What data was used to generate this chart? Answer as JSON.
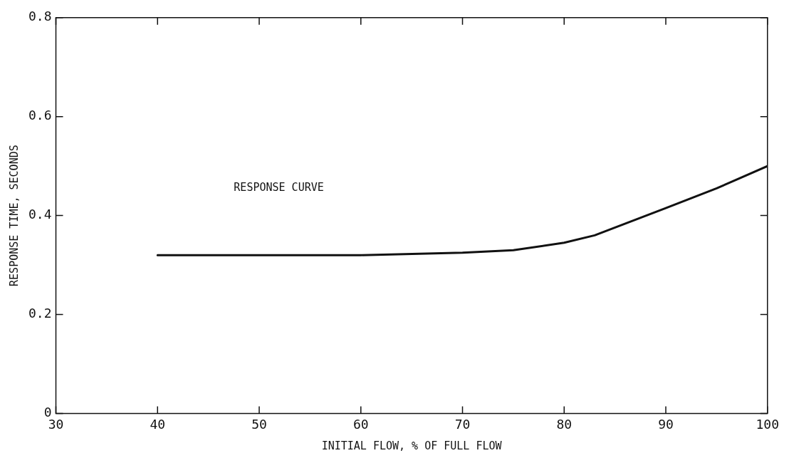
{
  "chart_data": {
    "type": "line",
    "xlabel": "INITIAL FLOW, % OF FULL FLOW",
    "ylabel": "RESPONSE TIME, SECONDS",
    "series": [
      {
        "color": "#111111",
        "x": [
          40,
          50,
          60,
          70,
          75,
          80,
          83,
          90,
          95,
          100
        ],
        "values": [
          0.32,
          0.32,
          0.32,
          0.325,
          0.33,
          0.345,
          0.36,
          0.415,
          0.455,
          0.5
        ]
      }
    ],
    "xlim": [
      30,
      100
    ],
    "xticks": [
      30,
      40,
      50,
      60,
      70,
      80,
      90,
      100
    ],
    "ylim": [
      0,
      0.8
    ],
    "yticks": [
      {
        "value": 0,
        "label": "0"
      },
      {
        "value": 0.2,
        "label": "0.2"
      },
      {
        "value": 0.4,
        "label": "0.4"
      },
      {
        "value": 0.6,
        "label": "0.6"
      },
      {
        "value": 0.8,
        "label": "0.8"
      }
    ],
    "annotations": [
      "RESPONSE CURVE"
    ],
    "grid": false,
    "legend": false,
    "marker": "none",
    "line_style": "solid"
  }
}
